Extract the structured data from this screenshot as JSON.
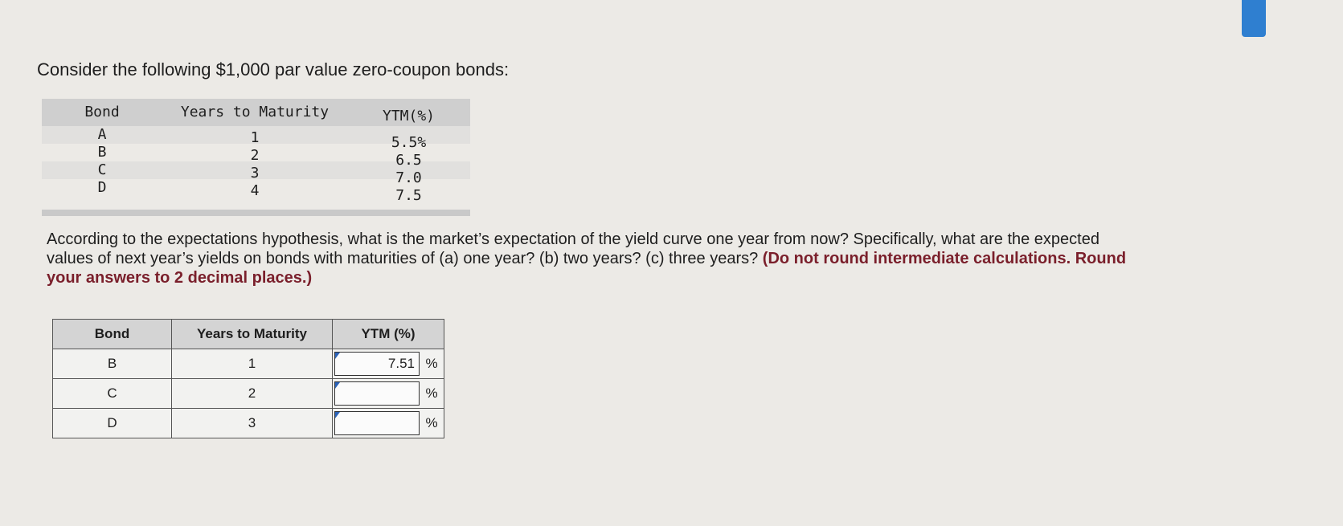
{
  "title": "Consider the following $1,000 par value zero-coupon bonds:",
  "given_table": {
    "headers": [
      "Bond",
      "Years to Maturity",
      "YTM(%)"
    ],
    "rows": [
      [
        "A",
        "1",
        "5.5%"
      ],
      [
        "B",
        "2",
        "6.5"
      ],
      [
        "C",
        "3",
        "7.0"
      ],
      [
        "D",
        "4",
        "7.5"
      ]
    ]
  },
  "question": {
    "text": "According to the expectations hypothesis, what is the market’s expectation of the yield curve one year from now? Specifically, what are the expected values of next year’s yields on bonds with maturities of (a) one year? (b) two years? (c) three years?",
    "instruction": "(Do not round intermediate calculations. Round your answers to 2 decimal places.)"
  },
  "answer_table": {
    "headers": [
      "Bond",
      "Years to Maturity",
      "YTM (%)"
    ],
    "unit": "%",
    "rows": [
      {
        "bond": "B",
        "years": "1",
        "value": "7.51"
      },
      {
        "bond": "C",
        "years": "2",
        "value": ""
      },
      {
        "bond": "D",
        "years": "3",
        "value": ""
      }
    ]
  },
  "colors": {
    "accent_tab": "#2f7fd0",
    "instruction_text": "#7a1f2b",
    "input_marker": "#2c63b8"
  }
}
